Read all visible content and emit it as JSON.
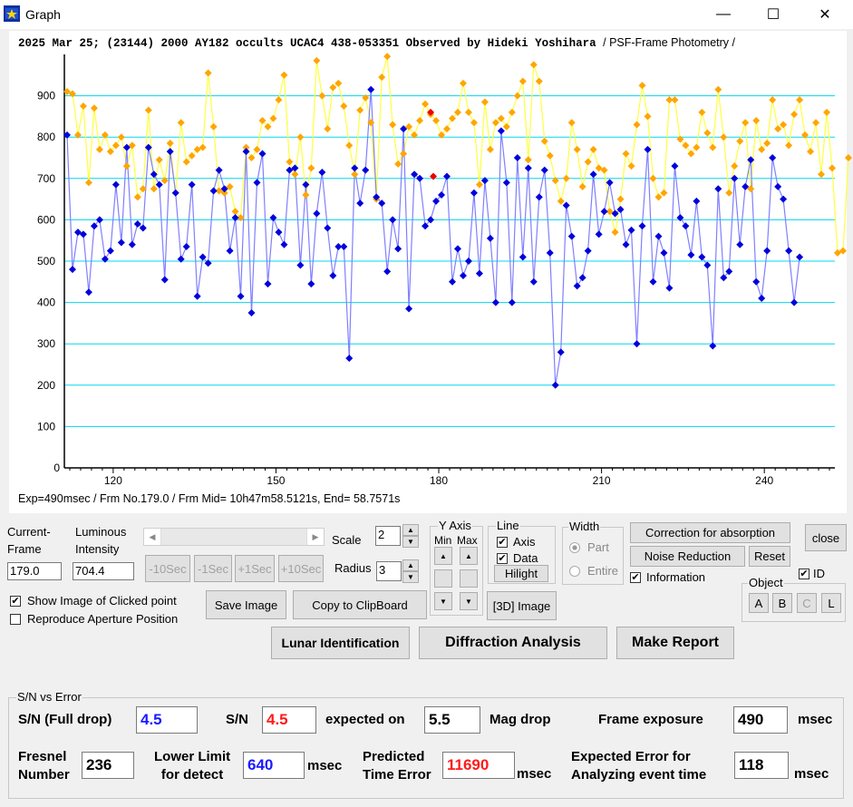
{
  "window": {
    "title": "Graph",
    "minimize": "—",
    "maximize": "☐",
    "close": "✕"
  },
  "graph": {
    "title_bold": "2025 Mar 25; (23144) 2000 AY182 occults UCAC4 438-053351 Observed by Hideki Yoshihara",
    "title_light": "/ PSF-Frame Photometry /",
    "footer": "Exp=490msec / Frm No.179.0 / Frm Mid= 10h47m58.5121s,  End= 58.7571s"
  },
  "chart_data": {
    "type": "line",
    "xlim": [
      111,
      253
    ],
    "ylim": [
      0,
      1000
    ],
    "x_ticks": [
      120,
      150,
      180,
      210,
      240
    ],
    "y_ticks": [
      100,
      200,
      300,
      400,
      500,
      600,
      700,
      800,
      900
    ],
    "gridlines": "horizontal cyan",
    "colors": {
      "target": "#0000dd",
      "target_line": "#8080ff",
      "comparison": "#ffa500",
      "comparison_line": "#ffff40",
      "highlight": "#ee0000",
      "grid": "#00d8f0"
    },
    "series": [
      {
        "x_start": 111.5,
        "x_step": 1,
        "values": [
          805,
          480,
          570,
          565,
          425,
          585,
          600,
          505,
          525,
          685,
          545,
          775,
          540,
          590,
          580,
          775,
          710,
          685,
          455,
          765,
          665,
          505,
          535,
          685,
          415,
          510,
          495,
          670,
          720,
          675,
          525,
          605,
          415,
          765,
          375,
          690,
          760,
          445,
          605,
          570,
          540,
          720,
          725,
          490,
          685,
          445,
          615,
          715,
          580,
          465,
          535,
          535,
          265,
          725,
          640,
          720,
          915,
          655,
          640,
          475,
          600,
          530,
          820,
          385,
          710,
          700,
          585,
          600,
          645,
          660,
          705,
          450,
          530,
          465,
          500,
          665,
          470,
          695,
          555,
          400,
          815,
          690,
          400,
          750,
          510,
          725,
          450,
          655,
          720,
          520,
          200,
          280,
          635,
          560,
          440,
          460,
          525,
          710,
          565,
          620,
          690,
          615,
          625,
          540,
          575,
          300,
          585,
          770,
          450,
          560,
          520,
          435,
          730,
          605,
          585,
          515,
          645,
          510,
          490,
          295,
          675,
          460,
          475,
          700,
          540,
          680,
          745,
          450,
          410,
          525,
          750,
          680,
          650,
          525,
          400,
          510
        ]
      },
      {
        "x_start": 111.5,
        "x_step": 1,
        "values": [
          910,
          905,
          805,
          875,
          690,
          870,
          770,
          805,
          765,
          780,
          800,
          730,
          780,
          655,
          675,
          865,
          675,
          745,
          695,
          785,
          665,
          835,
          740,
          755,
          770,
          775,
          955,
          825,
          670,
          665,
          680,
          620,
          605,
          775,
          750,
          770,
          840,
          825,
          845,
          890,
          950,
          740,
          710,
          800,
          660,
          725,
          985,
          900,
          820,
          920,
          930,
          875,
          780,
          710,
          865,
          895,
          835,
          650,
          945,
          995,
          830,
          735,
          760,
          825,
          805,
          840,
          880,
          855,
          840,
          805,
          820,
          845,
          860,
          930,
          860,
          835,
          685,
          885,
          770,
          835,
          845,
          825,
          860,
          900,
          935,
          745,
          975,
          935,
          790,
          755,
          695,
          645,
          700,
          835,
          770,
          680,
          740,
          770,
          725,
          720,
          620,
          570,
          650,
          760,
          730,
          830,
          925,
          850,
          700,
          655,
          665,
          890,
          890,
          795,
          780,
          760,
          775,
          860,
          810,
          775,
          915,
          800,
          665,
          730,
          790,
          835,
          675,
          840,
          770,
          785,
          890,
          820,
          830,
          780,
          855,
          890,
          805,
          765,
          835,
          710,
          860,
          725,
          520,
          525,
          750
        ]
      }
    ],
    "highlights": [
      {
        "x": 178.5,
        "y": 860
      },
      {
        "x": 179.0,
        "y": 705
      }
    ]
  },
  "controls": {
    "current_frame_label": "Current-\nFrame",
    "current_frame_value": "179.0",
    "luminous_label": "Luminous\nIntensity",
    "luminous_value": "704.4",
    "scale_label": "Scale",
    "scale_value": "2",
    "radius_label": "Radius",
    "radius_value": "3",
    "nav_buttons": [
      "-10Sec",
      "-1Sec",
      "+1Sec",
      "+10Sec"
    ],
    "yaxis_title": "Y Axis",
    "yaxis_min": "Min",
    "yaxis_max": "Max",
    "line_title": "Line",
    "line_axis": "Axis",
    "line_data": "Data",
    "hilight": "Hilight",
    "image3d": "[3D] Image",
    "width_title": "Width",
    "width_part": "Part",
    "width_entire": "Entire",
    "correction": "Correction for absorption",
    "noise": "Noise Reduction",
    "reset": "Reset",
    "close": "close",
    "information": "Information",
    "id": "ID",
    "object_title": "Object",
    "objects": [
      "A",
      "B",
      "C",
      "L"
    ],
    "show_image": "Show Image of Clicked point",
    "reproduce": "Reproduce Aperture Position",
    "save_image": "Save Image",
    "copy_clipboard": "Copy to ClipBoard",
    "lunar": "Lunar Identification",
    "diffraction": "Diffraction Analysis",
    "report": "Make Report"
  },
  "sn": {
    "group_title": "S/N vs Error",
    "full_label": "S/N (Full drop)",
    "full_value": "4.5",
    "sn_label": "S/N",
    "sn_value": "4.5",
    "expected_label": "expected on",
    "mag_value": "5.5",
    "mag_label": "Mag drop",
    "exposure_label": "Frame exposure",
    "exposure_value": "490",
    "exposure_unit": "msec",
    "fresnel_label": "Fresnel\nNumber",
    "fresnel_value": "236",
    "lower_label": "Lower Limit\nfor detect",
    "lower_value": "640",
    "lower_unit": "msec",
    "predicted_label": "Predicted\nTime Error",
    "predicted_value": "11690",
    "predicted_unit": "msec",
    "expected_error_label": "Expected Error for\nAnalyzing event time",
    "expected_error_value": "118",
    "expected_error_unit": "msec",
    "value_colors": {
      "blue": "#1a1aff",
      "red": "#ff1a1a"
    }
  }
}
